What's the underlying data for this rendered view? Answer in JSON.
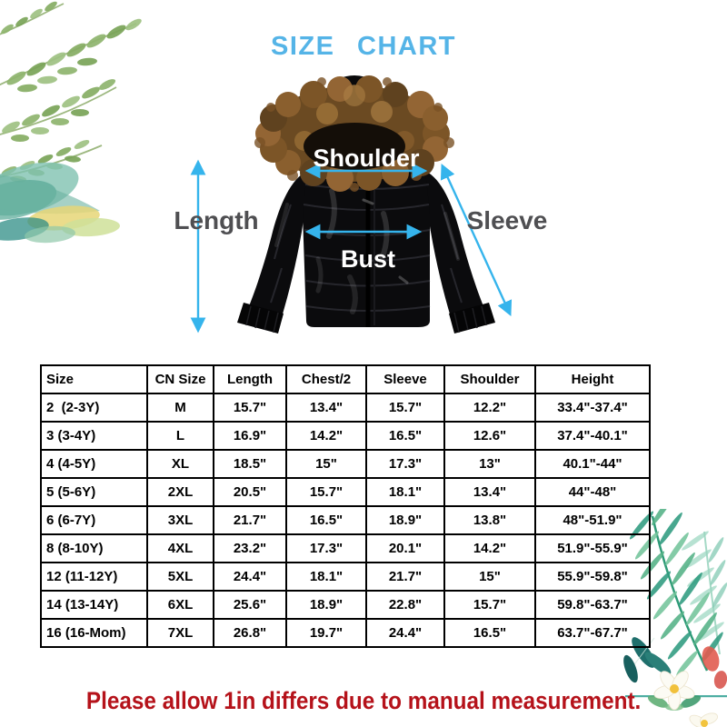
{
  "title": "SIZE CHART",
  "diagram": {
    "labels": {
      "shoulder": "Shoulder",
      "length": "Length",
      "sleeve": "Sleeve",
      "bust": "Bust"
    }
  },
  "chart_data": {
    "type": "table",
    "title": "SIZE CHART",
    "columns": [
      "Size",
      "CN Size",
      "Length",
      "Chest/2",
      "Sleeve",
      "Shoulder",
      "Height"
    ],
    "rows": [
      [
        "2  (2-3Y)",
        "M",
        "15.7\"",
        "13.4\"",
        "15.7\"",
        "12.2\"",
        "33.4\"-37.4\""
      ],
      [
        "3 (3-4Y)",
        "L",
        "16.9\"",
        "14.2\"",
        "16.5\"",
        "12.6\"",
        "37.4\"-40.1\""
      ],
      [
        "4 (4-5Y)",
        "XL",
        "18.5\"",
        "15\"",
        "17.3\"",
        "13\"",
        "40.1\"-44\""
      ],
      [
        "5 (5-6Y)",
        "2XL",
        "20.5\"",
        "15.7\"",
        "18.1\"",
        "13.4\"",
        "44\"-48\""
      ],
      [
        "6 (6-7Y)",
        "3XL",
        "21.7\"",
        "16.5\"",
        "18.9\"",
        "13.8\"",
        "48\"-51.9\""
      ],
      [
        "8 (8-10Y)",
        "4XL",
        "23.2\"",
        "17.3\"",
        "20.1\"",
        "14.2\"",
        "51.9\"-55.9\""
      ],
      [
        "12 (11-12Y)",
        "5XL",
        "24.4\"",
        "18.1\"",
        "21.7\"",
        "15\"",
        "55.9\"-59.8\""
      ],
      [
        "14 (13-14Y)",
        "6XL",
        "25.6\"",
        "18.9\"",
        "22.8\"",
        "15.7\"",
        "59.8\"-63.7\""
      ],
      [
        "16 (16-Mom)",
        "7XL",
        "26.8\"",
        "19.7\"",
        "24.4\"",
        "16.5\"",
        "63.7\"-67.7\""
      ]
    ]
  },
  "footnote": "Please allow 1in differs due to manual measurement.",
  "colors": {
    "title_blue": "#55b4e7",
    "arrow_blue": "#35b4ec",
    "label_gray": "#4f4f52",
    "footnote_red": "#b5121a"
  }
}
